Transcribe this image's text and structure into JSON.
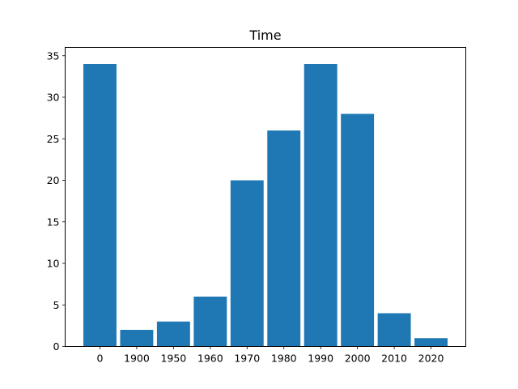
{
  "chart_data": {
    "type": "bar",
    "title": "Time",
    "xlabel": "",
    "ylabel": "",
    "categories": [
      "0",
      "1900",
      "1950",
      "1960",
      "1970",
      "1980",
      "1990",
      "2000",
      "2010",
      "2020"
    ],
    "values": [
      34,
      2,
      3,
      6,
      20,
      26,
      34,
      28,
      4,
      1
    ],
    "ylim": [
      0,
      36
    ],
    "yticks": [
      0,
      5,
      10,
      15,
      20,
      25,
      30,
      35
    ],
    "grid": false,
    "bar_color": "#1f77b4"
  }
}
